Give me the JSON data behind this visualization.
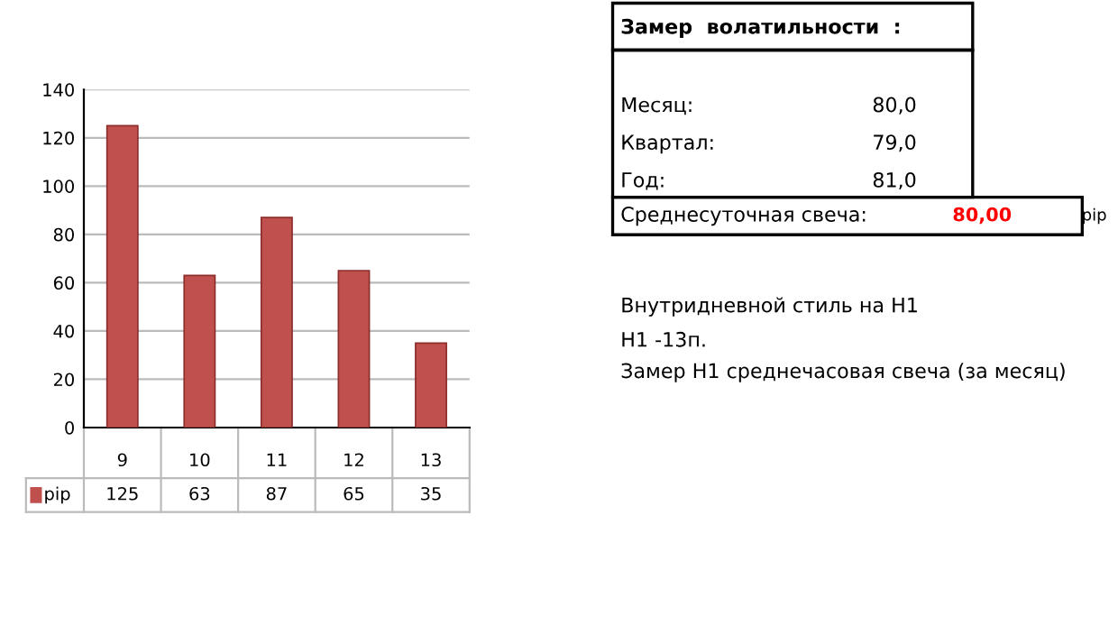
{
  "chart_data": {
    "type": "bar",
    "categories": [
      "9",
      "10",
      "11",
      "12",
      "13"
    ],
    "series": [
      {
        "name": "pip",
        "color": "#c0504d",
        "values": [
          125,
          63,
          87,
          65,
          35
        ]
      }
    ],
    "ylim": [
      0,
      140
    ],
    "yticks": [
      0,
      20,
      40,
      60,
      80,
      100,
      120,
      140
    ],
    "grid": "y",
    "legend": "bottom",
    "data_labels": true,
    "annotations": [
      "Замер  волатильности  :",
      "Месяц:",
      "80,0",
      "Квартал:",
      "79,0",
      "Год:",
      "81,0",
      "Среднесуточная свеча:",
      "80,00",
      "pip",
      "Внутридневной стиль на H1",
      "H1 -13п.",
      "Замер H1 среднечасовая свеча (за месяц)"
    ]
  }
}
